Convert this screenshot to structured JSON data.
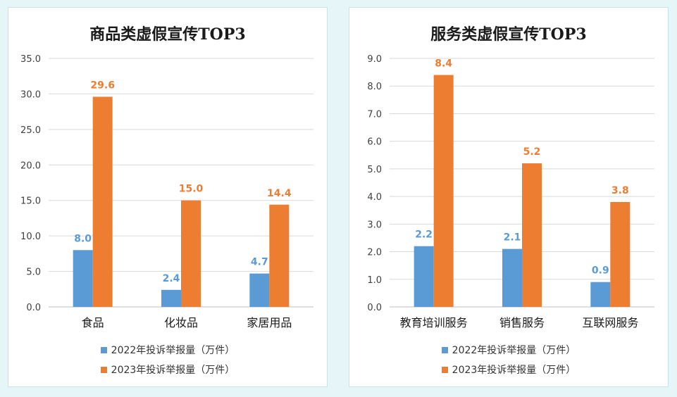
{
  "chart_data": [
    {
      "type": "bar",
      "title": "商品类虚假宣传TOP3",
      "categories": [
        "食品",
        "化妆品",
        "家居用品"
      ],
      "series": [
        {
          "name": "2022年投诉举报量（万件）",
          "values": [
            8.0,
            2.4,
            4.7
          ],
          "color": "#5b9bd5",
          "label_color": "#5b9bd5"
        },
        {
          "name": "2023年投诉举报量（万件）",
          "values": [
            29.6,
            15.0,
            14.4
          ],
          "color": "#ed7d31",
          "label_color": "#ed7d31"
        }
      ],
      "ylim": [
        0,
        35
      ],
      "yticks": [
        "0.0",
        "5.0",
        "10.0",
        "15.0",
        "20.0",
        "25.0",
        "30.0",
        "35.0"
      ],
      "ytick_values": [
        0,
        5,
        10,
        15,
        20,
        25,
        30,
        35
      ],
      "grid": true,
      "legend_position": "bottom",
      "xlabel": "",
      "ylabel": ""
    },
    {
      "type": "bar",
      "title": "服务类虚假宣传TOP3",
      "categories": [
        "教育培训服务",
        "销售服务",
        "互联网服务"
      ],
      "series": [
        {
          "name": "2022年投诉举报量（万件）",
          "values": [
            2.2,
            2.1,
            0.9
          ],
          "color": "#5b9bd5",
          "label_color": "#5b9bd5"
        },
        {
          "name": "2023年投诉举报量（万件）",
          "values": [
            8.4,
            5.2,
            3.8
          ],
          "color": "#ed7d31",
          "label_color": "#ed7d31"
        }
      ],
      "ylim": [
        0,
        9
      ],
      "yticks": [
        "0.0",
        "1.0",
        "2.0",
        "3.0",
        "4.0",
        "5.0",
        "6.0",
        "7.0",
        "8.0",
        "9.0"
      ],
      "ytick_values": [
        0,
        1,
        2,
        3,
        4,
        5,
        6,
        7,
        8,
        9
      ],
      "grid": true,
      "legend_position": "bottom",
      "xlabel": "",
      "ylabel": ""
    }
  ]
}
